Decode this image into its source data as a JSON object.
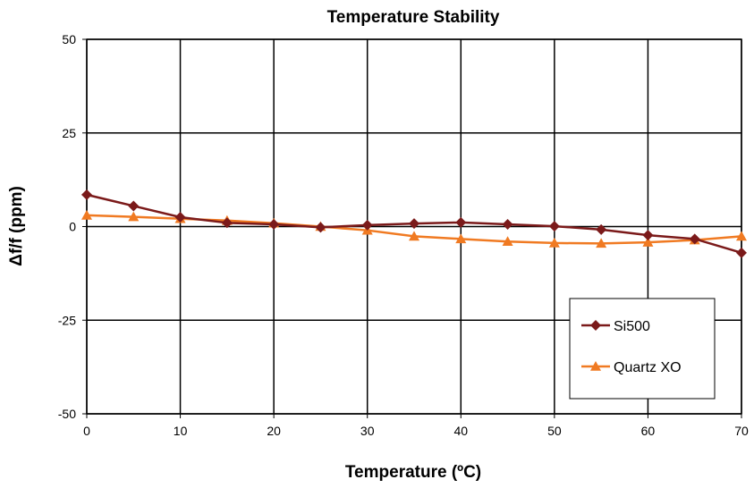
{
  "chart_data": {
    "type": "line",
    "title": "Temperature Stability",
    "xlabel": "Temperature (ºC)",
    "ylabel": "Δf/f (ppm)",
    "xlim": [
      0,
      70
    ],
    "ylim": [
      -50,
      50
    ],
    "xticks": [
      0,
      10,
      20,
      30,
      40,
      50,
      60,
      70
    ],
    "yticks": [
      -50,
      -25,
      0,
      25,
      50
    ],
    "grid": true,
    "legend_position": "bottom-right",
    "x": [
      0,
      5,
      10,
      15,
      20,
      25,
      30,
      35,
      40,
      45,
      50,
      55,
      60,
      65,
      70
    ],
    "series": [
      {
        "name": "Si500",
        "color": "#7b1a1a",
        "marker": "diamond",
        "values": [
          8.5,
          5.5,
          2.5,
          1.0,
          0.6,
          -0.2,
          0.4,
          0.8,
          1.1,
          0.6,
          0.1,
          -0.8,
          -2.3,
          -3.3,
          -7.0
        ]
      },
      {
        "name": "Quartz XO",
        "color": "#f07a22",
        "marker": "triangle",
        "values": [
          3.0,
          2.6,
          2.1,
          1.6,
          0.9,
          0.0,
          -1.0,
          -2.6,
          -3.3,
          -4.0,
          -4.4,
          -4.5,
          -4.2,
          -3.6,
          -2.6
        ]
      }
    ]
  }
}
